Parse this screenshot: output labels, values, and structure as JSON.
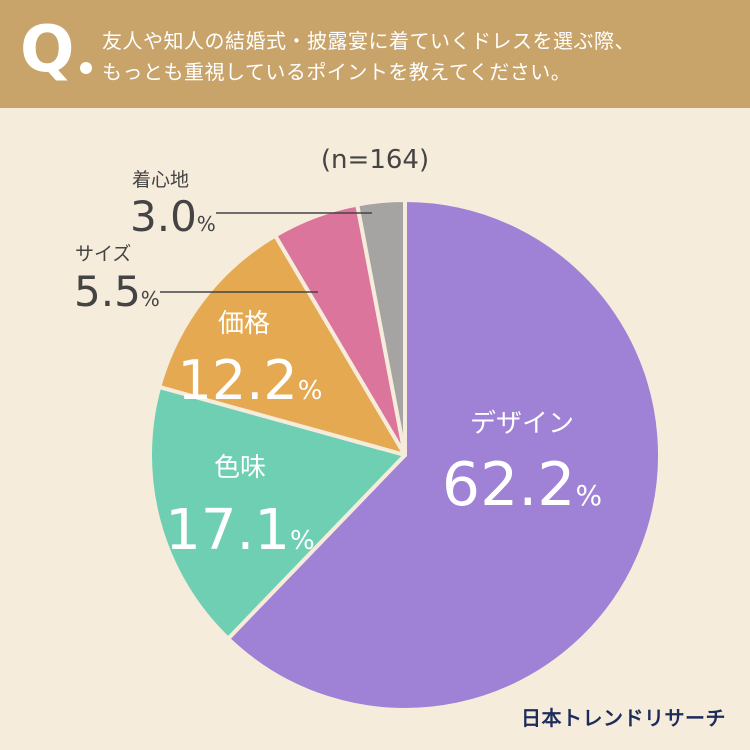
{
  "question": {
    "mark": "Q",
    "line1": "友人や知人の結婚式・披露宴に着ていくドレスを選ぶ際、",
    "line2": "もっとも重視しているポイントを教えてください。"
  },
  "colors": {
    "header": "#c9a46a",
    "background": "#f6ecdc",
    "design": "#9f81d6",
    "color_taste": "#6ecfb2",
    "price": "#e4a951",
    "size": "#dc759b",
    "comfort": "#a6a3a3",
    "label_dark": "#444444",
    "brand": "#1d2d5a"
  },
  "chart_data": {
    "type": "pie",
    "n_label": "(n=164)",
    "slices": [
      {
        "name": "デザイン",
        "value": 62.2,
        "display": "62.2",
        "unit": "%"
      },
      {
        "name": "色味",
        "value": 17.1,
        "display": "17.1",
        "unit": "%"
      },
      {
        "name": "価格",
        "value": 12.2,
        "display": "12.2",
        "unit": "%"
      },
      {
        "name": "サイズ",
        "value": 5.5,
        "display": "5.5",
        "unit": "%"
      },
      {
        "name": "着心地",
        "value": 3.0,
        "display": "3.0",
        "unit": "%"
      }
    ],
    "start": "12 o'clock",
    "direction": "clockwise"
  },
  "brand": "日本トレンドリサーチ"
}
